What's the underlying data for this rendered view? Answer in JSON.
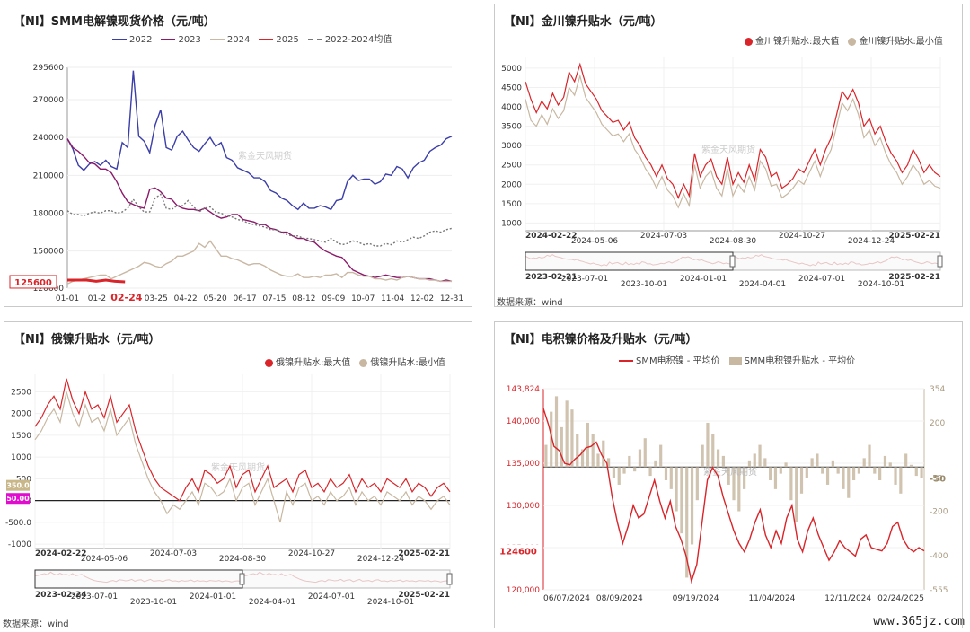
{
  "colors": {
    "c2022": "#3b3ea8",
    "c2023": "#8b1a6b",
    "c2024": "#c9b8a4",
    "c2025": "#d9252a",
    "avg": "#777777",
    "red": "#d9252a",
    "tan": "#c8b8a2"
  },
  "watermark": "www.365jz.com",
  "chart_data": [
    {
      "id": "p1",
      "type": "line",
      "title": "【NI】SMM电解镍现货价格（元/吨）",
      "legend": [
        "2022",
        "2023",
        "2024",
        "2025",
        "2022-2024均值"
      ],
      "x_ticks": [
        "01-01",
        "01-2",
        "02-24",
        "03-25",
        "04-22",
        "05-20",
        "06-17",
        "07-15",
        "08-12",
        "09-09",
        "10-07",
        "11-04",
        "12-02",
        "12-31"
      ],
      "y_ticks": [
        "295600",
        "270000",
        "240000",
        "210000",
        "180000",
        "150000",
        "120600"
      ],
      "ylim": [
        120600,
        295600
      ],
      "end_label": "125600",
      "watermark_text": "紫金天风期货",
      "series": [
        {
          "name": "2022",
          "values": [
            239,
            231,
            218,
            214,
            219,
            221,
            218,
            222,
            217,
            215,
            236,
            232,
            293,
            241,
            237,
            228,
            250,
            262,
            232,
            230,
            241,
            245,
            238,
            232,
            229,
            235,
            240,
            233,
            236,
            224,
            222,
            216,
            214,
            212,
            208,
            208,
            205,
            198,
            196,
            192,
            190,
            186,
            183,
            188,
            184,
            184,
            186,
            185,
            183,
            190,
            191,
            205,
            210,
            206,
            207,
            207,
            203,
            205,
            211,
            210,
            217,
            215,
            208,
            216,
            220,
            222,
            229,
            232,
            234,
            239,
            241
          ]
        },
        {
          "name": "2023",
          "values": [
            239,
            232,
            229,
            225,
            220,
            219,
            215,
            215,
            212,
            205,
            196,
            189,
            187,
            185,
            184,
            199,
            200,
            197,
            192,
            191,
            186,
            184,
            183,
            183,
            182,
            184,
            181,
            178,
            176,
            177,
            179,
            179,
            175,
            174,
            173,
            171,
            171,
            168,
            167,
            165,
            165,
            162,
            160,
            160,
            158,
            157,
            153,
            150,
            148,
            146,
            145,
            140,
            135,
            133,
            131,
            130,
            129,
            130,
            131,
            130,
            129,
            129,
            130,
            129,
            128,
            128,
            128,
            127,
            126,
            127,
            126
          ]
        },
        {
          "name": "2024",
          "values": [
            124,
            126,
            127,
            128,
            129,
            130,
            131,
            131,
            128,
            130,
            132,
            134,
            136,
            138,
            141,
            140,
            138,
            137,
            140,
            142,
            146,
            146,
            148,
            150,
            156,
            153,
            158,
            152,
            146,
            146,
            144,
            143,
            141,
            139,
            140,
            140,
            138,
            135,
            133,
            131,
            130,
            130,
            132,
            129,
            129,
            130,
            129,
            131,
            131,
            132,
            129,
            133,
            133,
            131,
            130,
            130,
            128,
            128,
            127,
            128,
            127,
            129,
            130,
            129,
            128,
            128,
            127,
            127,
            126,
            126,
            126
          ]
        },
        {
          "name": "2025",
          "values": [
            127,
            127,
            127,
            126,
            127,
            126,
            125.6
          ]
        },
        {
          "name": "2022-2024均值",
          "values": [
            182,
            179,
            179,
            178,
            180,
            181,
            180,
            182,
            182,
            180,
            181,
            184,
            191,
            185,
            181,
            181,
            192,
            195,
            184,
            183,
            186,
            186,
            190,
            185,
            181,
            184,
            185,
            181,
            180,
            178,
            177,
            175,
            174,
            172,
            171,
            170,
            169,
            167,
            167,
            165,
            163,
            162,
            162,
            160,
            160,
            159,
            158,
            157,
            160,
            157,
            155,
            156,
            158,
            157,
            155,
            156,
            154,
            154,
            156,
            155,
            158,
            157,
            159,
            161,
            160,
            162,
            165,
            166,
            165,
            167,
            168
          ]
        }
      ]
    },
    {
      "id": "p2",
      "type": "line",
      "title": "【NI】金川镍升贴水（元/吨）",
      "legend": [
        "金川镍升贴水:最大值",
        "金川镍升贴水:最小值"
      ],
      "x_ticks_top": [
        "2024-02-22",
        "2024-05-06",
        "2024-07-03",
        "2024-08-30",
        "2024-10-27",
        "2024-12-24",
        "2025-02-21"
      ],
      "x_ticks_nav": [
        "2023-02-21",
        "2023-07-01",
        "2023-10-01",
        "2024-01-01",
        "2024-04-01",
        "2024-07-01",
        "2024-10-01",
        "2025-02-21"
      ],
      "y_ticks": [
        "5000",
        "4500",
        "4000",
        "3500",
        "3000",
        "2500",
        "2000",
        "1500",
        "1000"
      ],
      "ylim": [
        1000,
        5000
      ],
      "watermark_text": "紫金天风期货",
      "source": "数据来源：wind",
      "series": [
        {
          "name": "金川镍升贴水:最大值",
          "values": [
            4650,
            4200,
            3850,
            4150,
            3950,
            4350,
            4050,
            4250,
            4900,
            4650,
            5100,
            4600,
            4400,
            4200,
            3900,
            3750,
            3600,
            3650,
            3400,
            3600,
            3200,
            3000,
            2700,
            2500,
            2200,
            2500,
            2150,
            2000,
            1650,
            2000,
            1700,
            2800,
            2200,
            2500,
            2650,
            2200,
            2000,
            2700,
            2000,
            2300,
            2050,
            2500,
            2100,
            2900,
            2700,
            2200,
            2300,
            1900,
            2000,
            2150,
            2400,
            2300,
            2600,
            2900,
            2500,
            2900,
            3200,
            3800,
            4400,
            4200,
            4450,
            4100,
            3500,
            3700,
            3300,
            3500,
            3100,
            2800,
            2600,
            2300,
            2500,
            2900,
            2650,
            2300,
            2500,
            2300,
            2200
          ]
        },
        {
          "name": "金川镍升贴水:最小值",
          "values": [
            4200,
            3650,
            3500,
            3800,
            3550,
            3950,
            3700,
            3900,
            4500,
            4300,
            4800,
            4250,
            4050,
            3850,
            3550,
            3400,
            3250,
            3300,
            3100,
            3300,
            2900,
            2700,
            2400,
            2200,
            1900,
            2200,
            1850,
            1700,
            1400,
            1750,
            1450,
            2500,
            1900,
            2200,
            2350,
            1900,
            1700,
            2400,
            1700,
            2000,
            1800,
            2200,
            1850,
            2600,
            2400,
            1950,
            2000,
            1650,
            1750,
            1900,
            2100,
            2000,
            2300,
            2600,
            2200,
            2600,
            2900,
            3500,
            4100,
            3900,
            4200,
            3800,
            3200,
            3400,
            3000,
            3200,
            2800,
            2500,
            2300,
            2000,
            2200,
            2500,
            2300,
            2000,
            2100,
            1950,
            1900
          ]
        }
      ]
    },
    {
      "id": "p3",
      "type": "line",
      "title": "【NI】俄镍升贴水（元/吨）",
      "legend": [
        "俄镍升贴水:最大值",
        "俄镍升贴水:最小值"
      ],
      "x_ticks_top": [
        "2024-02-22",
        "2024-05-06",
        "2024-07-03",
        "2024-08-30",
        "2024-10-27",
        "2024-12-24",
        "2025-02-21"
      ],
      "x_ticks_nav": [
        "2023-02-24",
        "2023-07-01",
        "2023-10-01",
        "2024-01-01",
        "2024-04-01",
        "2024-07-01",
        "2024-10-01",
        "2025-02-21"
      ],
      "y_ticks": [
        "2500",
        "2000",
        "1500",
        "1000",
        "500",
        "0.0",
        "-500.0",
        "-1000"
      ],
      "ylim": [
        -1000,
        2900
      ],
      "tag_values": [
        "350.0",
        "50.00"
      ],
      "watermark_text": "紫金天风期货",
      "source": "数据来源：wind",
      "series": [
        {
          "name": "俄镍升贴水:最大值",
          "values": [
            1700,
            1900,
            2200,
            2400,
            2100,
            2800,
            2300,
            2000,
            2500,
            2100,
            2200,
            1900,
            2400,
            1800,
            2000,
            2200,
            1600,
            1200,
            800,
            500,
            300,
            200,
            100,
            0,
            300,
            500,
            200,
            700,
            600,
            400,
            500,
            800,
            300,
            600,
            700,
            200,
            500,
            800,
            300,
            400,
            500,
            200,
            600,
            700,
            300,
            400,
            200,
            500,
            300,
            400,
            600,
            200,
            500,
            300,
            400,
            200,
            500,
            400,
            300,
            500,
            200,
            400,
            300,
            100,
            300,
            400,
            200
          ]
        },
        {
          "name": "俄镍升贴水:最小值",
          "values": [
            1400,
            1600,
            1900,
            2100,
            1800,
            2500,
            2000,
            1700,
            2200,
            1800,
            1900,
            1600,
            2100,
            1500,
            1700,
            1900,
            1300,
            900,
            500,
            200,
            0,
            -300,
            -100,
            -200,
            0,
            200,
            -100,
            400,
            300,
            100,
            200,
            500,
            0,
            300,
            400,
            -100,
            200,
            500,
            0,
            -500,
            200,
            -100,
            300,
            400,
            0,
            100,
            -100,
            200,
            0,
            100,
            300,
            -100,
            200,
            0,
            100,
            -100,
            200,
            100,
            0,
            200,
            -100,
            100,
            0,
            -200,
            0,
            100,
            -100
          ]
        }
      ]
    },
    {
      "id": "p4",
      "type": "bar+line",
      "title": "【NI】电积镍价格及升贴水（元/吨）",
      "legend": [
        "SMM电积镍 - 平均价",
        "SMM电积镍升贴水 - 平均价"
      ],
      "x_ticks": [
        "06/07/2024",
        "08/09/2024",
        "09/19/2024",
        "11/04/2024",
        "12/11/2024",
        "02/24/2025"
      ],
      "y_ticks_left": [
        "143,824",
        "140,000",
        "135,000",
        "130,000",
        "125,000",
        "120,000"
      ],
      "ylim_left": [
        120000,
        143824
      ],
      "y_ticks_right": [
        "354",
        "200",
        "-50",
        "-200",
        "-400",
        "-555"
      ],
      "ylim_right": [
        -555,
        354
      ],
      "tag_left": "124600",
      "tag_right": "-50",
      "watermark_text": "紫金天风期货",
      "price": [
        141500,
        139500,
        137000,
        136500,
        135000,
        134800,
        135500,
        136000,
        136800,
        137000,
        137500,
        136000,
        135000,
        131000,
        128000,
        125500,
        127500,
        130000,
        128500,
        129000,
        131000,
        133000,
        130500,
        128500,
        130500,
        127500,
        126000,
        124000,
        121000,
        123000,
        128000,
        133000,
        134500,
        133500,
        131000,
        129000,
        127000,
        125500,
        124500,
        126000,
        128000,
        129500,
        126500,
        125000,
        127000,
        125500,
        128500,
        130000,
        126000,
        124500,
        127000,
        128500,
        126500,
        125000,
        123500,
        124500,
        125800,
        125000,
        124500,
        124000,
        126000,
        126500,
        125000,
        124800,
        124600,
        125500,
        127500,
        128000,
        126000,
        125000,
        124500,
        125000,
        124600
      ],
      "premium": [
        100,
        250,
        320,
        180,
        300,
        260,
        150,
        80,
        200,
        150,
        60,
        120,
        40,
        -50,
        -80,
        -30,
        50,
        -20,
        80,
        130,
        -40,
        30,
        100,
        -60,
        -100,
        -200,
        -300,
        -500,
        -350,
        -150,
        100,
        200,
        150,
        80,
        50,
        -80,
        -150,
        -200,
        -100,
        30,
        60,
        100,
        40,
        -60,
        -100,
        -30,
        20,
        -150,
        -250,
        -120,
        -50,
        40,
        60,
        -30,
        -80,
        30,
        -30,
        -100,
        -140,
        -60,
        -30,
        40,
        100,
        -30,
        -60,
        50,
        20,
        -80,
        -120,
        60,
        10,
        -40,
        -50
      ]
    }
  ]
}
